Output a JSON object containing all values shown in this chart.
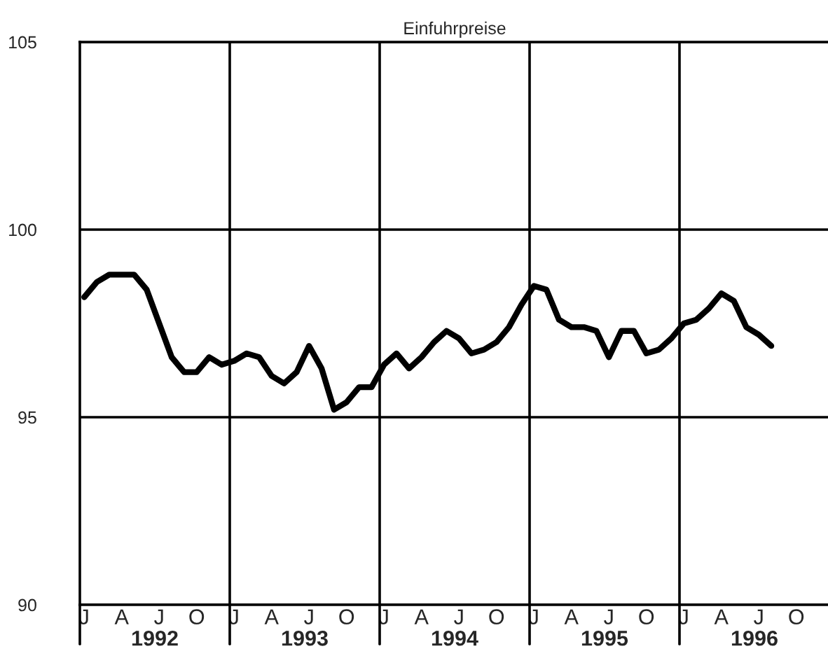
{
  "chart_data": {
    "type": "line",
    "title": "Einfuhrpreise",
    "categories": [
      "J",
      null,
      null,
      "A",
      null,
      null,
      "J",
      null,
      null,
      "O",
      null,
      null,
      "J",
      null,
      null,
      "A",
      null,
      null,
      "J",
      null,
      null,
      "O",
      null,
      null,
      "J",
      null,
      null,
      "A",
      null,
      null,
      "J",
      null,
      null,
      "O",
      null,
      null,
      "J",
      null,
      null,
      "A",
      null,
      null,
      "J",
      null,
      null,
      "O",
      null,
      null,
      "J",
      null,
      null,
      "A",
      null,
      null,
      "J",
      null,
      null,
      "O",
      null,
      null
    ],
    "series": [
      {
        "color": "#000000",
        "values": [
          98.2,
          98.6,
          98.8,
          98.8,
          98.8,
          98.4,
          97.5,
          96.6,
          96.2,
          96.2,
          96.6,
          96.4,
          96.5,
          96.7,
          96.6,
          96.1,
          95.9,
          96.2,
          96.9,
          96.3,
          95.2,
          95.4,
          95.8,
          95.8,
          96.4,
          96.7,
          96.3,
          96.6,
          97.0,
          97.3,
          97.1,
          96.7,
          96.8,
          97.0,
          97.4,
          98.0,
          98.5,
          98.4,
          97.6,
          97.4,
          97.4,
          97.3,
          96.6,
          97.3,
          97.3,
          96.7,
          96.8,
          97.1,
          97.5,
          97.6,
          97.9,
          98.3,
          98.1,
          97.4,
          97.2,
          96.9,
          null,
          null,
          null,
          null
        ]
      }
    ],
    "annotations": [
      "1992",
      "1993",
      "1994",
      "1995",
      "1996"
    ],
    "ylim": [
      90,
      105
    ],
    "yticks": [
      90,
      95,
      100,
      105
    ],
    "grid": "y",
    "line_style": "solid",
    "marker": "none",
    "legend": false
  }
}
